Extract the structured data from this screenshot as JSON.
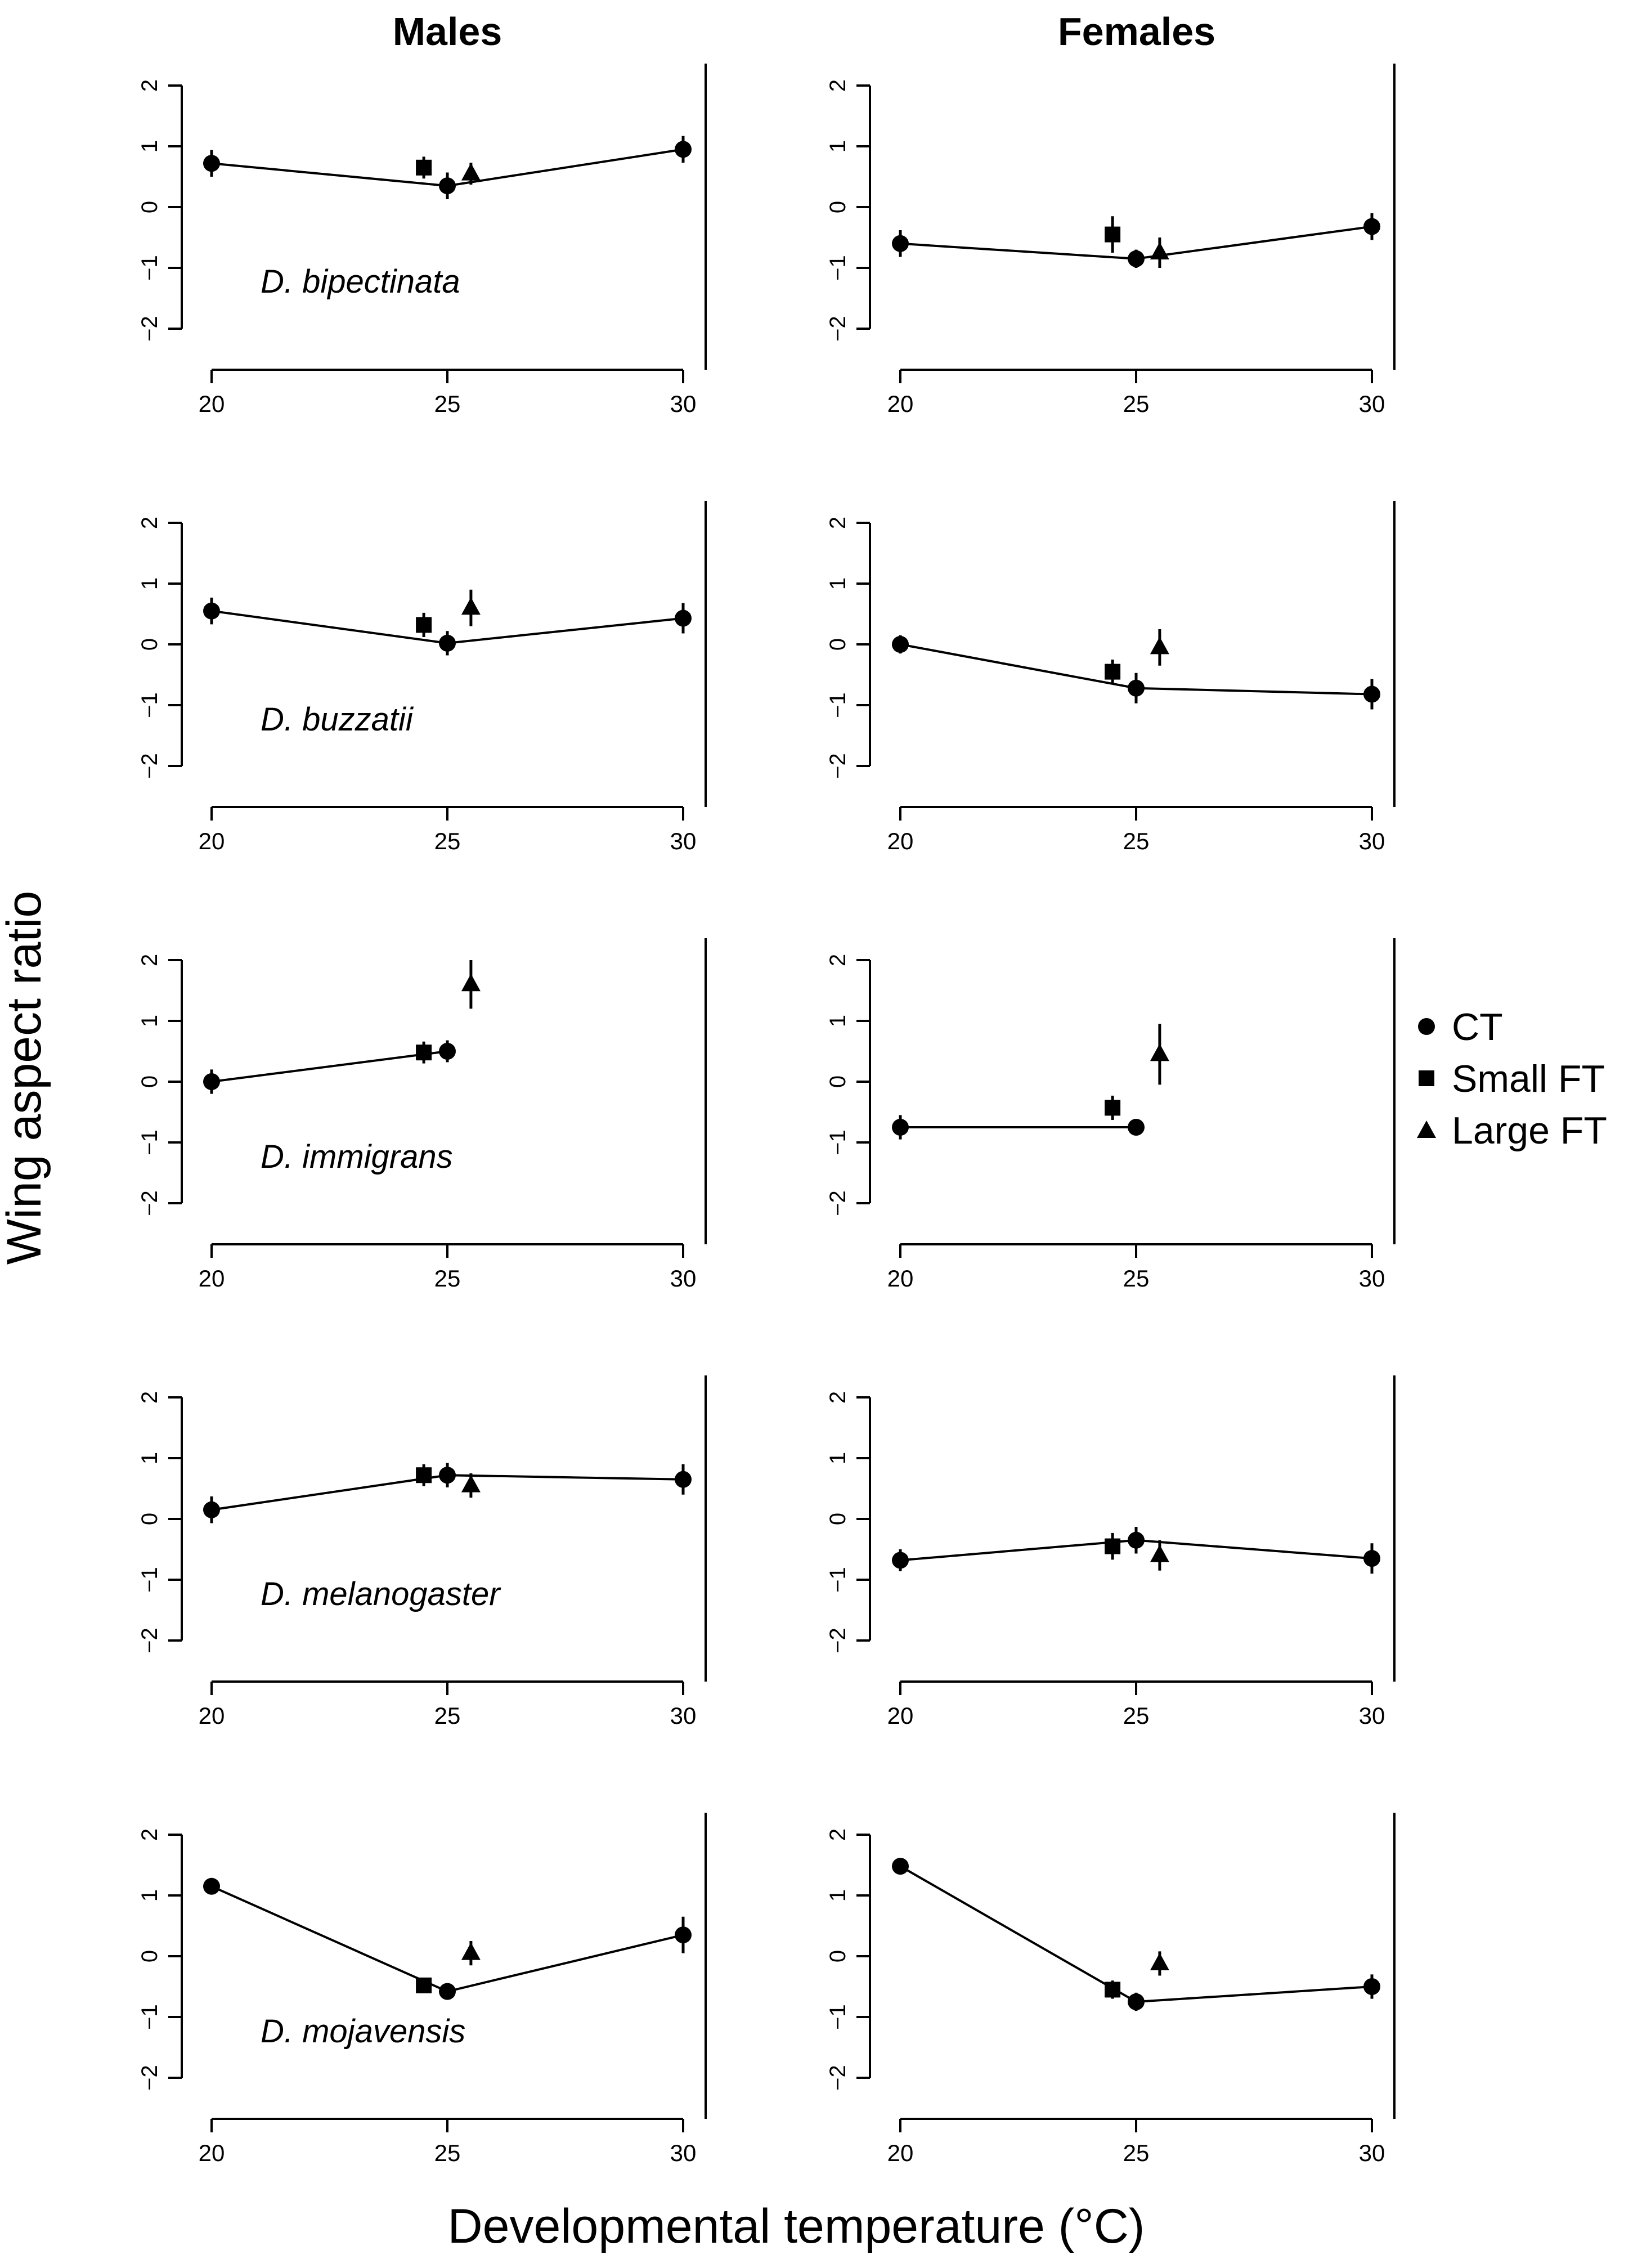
{
  "figure": {
    "column_titles": [
      "Males",
      "Females"
    ],
    "ylabel": "Wing aspect ratio",
    "xlabel": "Developmental temperature (°C)"
  },
  "legend": {
    "placement": "right-middle",
    "entries": [
      {
        "label": "CT",
        "marker": "circle"
      },
      {
        "label": "Small FT",
        "marker": "square"
      },
      {
        "label": "Large FT",
        "marker": "triangle"
      }
    ]
  },
  "chart_data": [
    {
      "type": "scatter",
      "species": "D. bipectinata",
      "sex": "Males",
      "xlim": [
        20,
        30
      ],
      "ylim": [
        -2,
        2
      ],
      "xticks": [
        20,
        25,
        30
      ],
      "yticks": [
        -2,
        -1,
        0,
        1,
        2
      ],
      "series": [
        {
          "name": "CT",
          "marker": "circle",
          "line": true,
          "points": [
            {
              "x": 20,
              "y": 0.72,
              "err": 0.22
            },
            {
              "x": 25,
              "y": 0.35,
              "err": 0.22
            },
            {
              "x": 30,
              "y": 0.95,
              "err": 0.22
            }
          ]
        },
        {
          "name": "Small FT",
          "marker": "square",
          "line": false,
          "points": [
            {
              "x": 24.5,
              "y": 0.65,
              "err": 0.18
            }
          ]
        },
        {
          "name": "Large FT",
          "marker": "triangle",
          "line": false,
          "points": [
            {
              "x": 25.5,
              "y": 0.55,
              "err": 0.18
            }
          ]
        }
      ]
    },
    {
      "type": "scatter",
      "species": "D. bipectinata",
      "sex": "Females",
      "xlim": [
        20,
        30
      ],
      "ylim": [
        -2,
        2
      ],
      "xticks": [
        20,
        25,
        30
      ],
      "yticks": [
        -2,
        -1,
        0,
        1,
        2
      ],
      "series": [
        {
          "name": "CT",
          "marker": "circle",
          "line": true,
          "points": [
            {
              "x": 20,
              "y": -0.6,
              "err": 0.22
            },
            {
              "x": 25,
              "y": -0.85,
              "err": 0.15
            },
            {
              "x": 30,
              "y": -0.32,
              "err": 0.22
            }
          ]
        },
        {
          "name": "Small FT",
          "marker": "square",
          "line": false,
          "points": [
            {
              "x": 24.5,
              "y": -0.45,
              "err": 0.3
            }
          ]
        },
        {
          "name": "Large FT",
          "marker": "triangle",
          "line": false,
          "points": [
            {
              "x": 25.5,
              "y": -0.75,
              "err": 0.25
            }
          ]
        }
      ]
    },
    {
      "type": "scatter",
      "species": "D. buzzatii",
      "sex": "Males",
      "xlim": [
        20,
        30
      ],
      "ylim": [
        -2,
        2
      ],
      "xticks": [
        20,
        25,
        30
      ],
      "yticks": [
        -2,
        -1,
        0,
        1,
        2
      ],
      "series": [
        {
          "name": "CT",
          "marker": "circle",
          "line": true,
          "points": [
            {
              "x": 20,
              "y": 0.55,
              "err": 0.22
            },
            {
              "x": 25,
              "y": 0.02,
              "err": 0.2
            },
            {
              "x": 30,
              "y": 0.43,
              "err": 0.25
            }
          ]
        },
        {
          "name": "Small FT",
          "marker": "square",
          "line": false,
          "points": [
            {
              "x": 24.5,
              "y": 0.32,
              "err": 0.2
            }
          ]
        },
        {
          "name": "Large FT",
          "marker": "triangle",
          "line": false,
          "points": [
            {
              "x": 25.5,
              "y": 0.6,
              "err": 0.3
            }
          ]
        }
      ]
    },
    {
      "type": "scatter",
      "species": "D. buzzatii",
      "sex": "Females",
      "xlim": [
        20,
        30
      ],
      "ylim": [
        -2,
        2
      ],
      "xticks": [
        20,
        25,
        30
      ],
      "yticks": [
        -2,
        -1,
        0,
        1,
        2
      ],
      "series": [
        {
          "name": "CT",
          "marker": "circle",
          "line": true,
          "points": [
            {
              "x": 20,
              "y": 0.0,
              "err": 0.15
            },
            {
              "x": 25,
              "y": -0.72,
              "err": 0.25
            },
            {
              "x": 30,
              "y": -0.82,
              "err": 0.25
            }
          ]
        },
        {
          "name": "Small FT",
          "marker": "square",
          "line": false,
          "points": [
            {
              "x": 24.5,
              "y": -0.45,
              "err": 0.2
            }
          ]
        },
        {
          "name": "Large FT",
          "marker": "triangle",
          "line": false,
          "points": [
            {
              "x": 25.5,
              "y": -0.05,
              "err": 0.3
            }
          ]
        }
      ]
    },
    {
      "type": "scatter",
      "species": "D. immigrans",
      "sex": "Males",
      "xlim": [
        20,
        30
      ],
      "ylim": [
        -2,
        2
      ],
      "xticks": [
        20,
        25,
        30
      ],
      "yticks": [
        -2,
        -1,
        0,
        1,
        2
      ],
      "series": [
        {
          "name": "CT",
          "marker": "circle",
          "line": true,
          "points": [
            {
              "x": 20,
              "y": 0.0,
              "err": 0.2
            },
            {
              "x": 25,
              "y": 0.5,
              "err": 0.18
            }
          ]
        },
        {
          "name": "Small FT",
          "marker": "square",
          "line": false,
          "points": [
            {
              "x": 24.5,
              "y": 0.48,
              "err": 0.18
            }
          ]
        },
        {
          "name": "Large FT",
          "marker": "triangle",
          "line": false,
          "points": [
            {
              "x": 25.5,
              "y": 1.6,
              "err": 0.4
            }
          ]
        }
      ]
    },
    {
      "type": "scatter",
      "species": "D. immigrans",
      "sex": "Females",
      "xlim": [
        20,
        30
      ],
      "ylim": [
        -2,
        2
      ],
      "xticks": [
        20,
        25,
        30
      ],
      "yticks": [
        -2,
        -1,
        0,
        1,
        2
      ],
      "series": [
        {
          "name": "CT",
          "marker": "circle",
          "line": true,
          "points": [
            {
              "x": 20,
              "y": -0.75,
              "err": 0.2
            },
            {
              "x": 25,
              "y": -0.75,
              "err": 0.12
            }
          ]
        },
        {
          "name": "Small FT",
          "marker": "square",
          "line": false,
          "points": [
            {
              "x": 24.5,
              "y": -0.43,
              "err": 0.2
            }
          ]
        },
        {
          "name": "Large FT",
          "marker": "triangle",
          "line": false,
          "points": [
            {
              "x": 25.5,
              "y": 0.45,
              "err": 0.5
            }
          ]
        }
      ]
    },
    {
      "type": "scatter",
      "species": "D. melanogaster",
      "sex": "Males",
      "xlim": [
        20,
        30
      ],
      "ylim": [
        -2,
        2
      ],
      "xticks": [
        20,
        25,
        30
      ],
      "yticks": [
        -2,
        -1,
        0,
        1,
        2
      ],
      "series": [
        {
          "name": "CT",
          "marker": "circle",
          "line": true,
          "points": [
            {
              "x": 20,
              "y": 0.15,
              "err": 0.22
            },
            {
              "x": 25,
              "y": 0.72,
              "err": 0.2
            },
            {
              "x": 30,
              "y": 0.65,
              "err": 0.25
            }
          ]
        },
        {
          "name": "Small FT",
          "marker": "square",
          "line": false,
          "points": [
            {
              "x": 24.5,
              "y": 0.72,
              "err": 0.18
            }
          ]
        },
        {
          "name": "Large FT",
          "marker": "triangle",
          "line": false,
          "points": [
            {
              "x": 25.5,
              "y": 0.55,
              "err": 0.2
            }
          ]
        }
      ]
    },
    {
      "type": "scatter",
      "species": "D. melanogaster",
      "sex": "Females",
      "xlim": [
        20,
        30
      ],
      "ylim": [
        -2,
        2
      ],
      "xticks": [
        20,
        25,
        30
      ],
      "yticks": [
        -2,
        -1,
        0,
        1,
        2
      ],
      "series": [
        {
          "name": "CT",
          "marker": "circle",
          "line": true,
          "points": [
            {
              "x": 20,
              "y": -0.68,
              "err": 0.18
            },
            {
              "x": 25,
              "y": -0.35,
              "err": 0.22
            },
            {
              "x": 30,
              "y": -0.65,
              "err": 0.25
            }
          ]
        },
        {
          "name": "Small FT",
          "marker": "square",
          "line": false,
          "points": [
            {
              "x": 24.5,
              "y": -0.45,
              "err": 0.22
            }
          ]
        },
        {
          "name": "Large FT",
          "marker": "triangle",
          "line": false,
          "points": [
            {
              "x": 25.5,
              "y": -0.6,
              "err": 0.25
            }
          ]
        }
      ]
    },
    {
      "type": "scatter",
      "species": "D. mojavensis",
      "sex": "Males",
      "xlim": [
        20,
        30
      ],
      "ylim": [
        -2,
        2
      ],
      "xticks": [
        20,
        25,
        30
      ],
      "yticks": [
        -2,
        -1,
        0,
        1,
        2
      ],
      "series": [
        {
          "name": "CT",
          "marker": "circle",
          "line": true,
          "points": [
            {
              "x": 20,
              "y": 1.15,
              "err": 0.12
            },
            {
              "x": 25,
              "y": -0.58,
              "err": 0.12
            },
            {
              "x": 30,
              "y": 0.35,
              "err": 0.3
            }
          ]
        },
        {
          "name": "Small FT",
          "marker": "square",
          "line": false,
          "points": [
            {
              "x": 24.5,
              "y": -0.48,
              "err": 0.12
            }
          ]
        },
        {
          "name": "Large FT",
          "marker": "triangle",
          "line": false,
          "points": [
            {
              "x": 25.5,
              "y": 0.05,
              "err": 0.2
            }
          ]
        }
      ]
    },
    {
      "type": "scatter",
      "species": "D. mojavensis",
      "sex": "Females",
      "xlim": [
        20,
        30
      ],
      "ylim": [
        -2,
        2
      ],
      "xticks": [
        20,
        25,
        30
      ],
      "yticks": [
        -2,
        -1,
        0,
        1,
        2
      ],
      "series": [
        {
          "name": "CT",
          "marker": "circle",
          "line": true,
          "points": [
            {
              "x": 20,
              "y": 1.48,
              "err": 0.12
            },
            {
              "x": 25,
              "y": -0.75,
              "err": 0.15
            },
            {
              "x": 30,
              "y": -0.5,
              "err": 0.2
            }
          ]
        },
        {
          "name": "Small FT",
          "marker": "square",
          "line": false,
          "points": [
            {
              "x": 24.5,
              "y": -0.55,
              "err": 0.15
            }
          ]
        },
        {
          "name": "Large FT",
          "marker": "triangle",
          "line": false,
          "points": [
            {
              "x": 25.5,
              "y": -0.12,
              "err": 0.2
            }
          ]
        }
      ]
    }
  ]
}
